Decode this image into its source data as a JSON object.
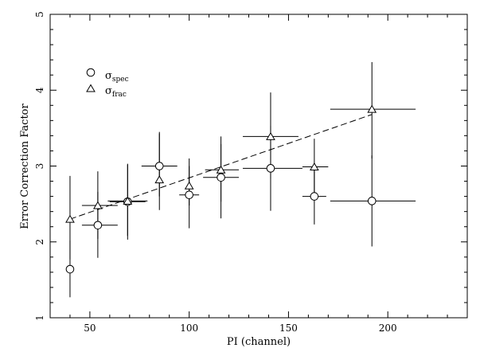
{
  "chart_data": {
    "type": "scatter",
    "xlabel": "PI (channel)",
    "ylabel": "Error Correction Factor",
    "xlim": [
      30,
      240
    ],
    "ylim": [
      1,
      5
    ],
    "x_ticks": [
      50,
      100,
      150,
      200
    ],
    "y_ticks": [
      1,
      2,
      3,
      4,
      5
    ],
    "grid": false,
    "legend_position": "top-left",
    "series": [
      {
        "name": "σspec",
        "marker": "circle",
        "points": [
          {
            "x": 40,
            "y": 1.64,
            "xerr": [
              0,
              0
            ],
            "yerr": [
              1.27,
              2.02
            ]
          },
          {
            "x": 54,
            "y": 2.22,
            "xerr": [
              46,
              64
            ],
            "yerr": [
              1.79,
              2.66
            ]
          },
          {
            "x": 69,
            "y": 2.53,
            "xerr": [
              60,
              78
            ],
            "yerr": [
              2.03,
              3.03
            ]
          },
          {
            "x": 85,
            "y": 3.0,
            "xerr": [
              76,
              94
            ],
            "yerr": [
              2.6,
              3.43
            ]
          },
          {
            "x": 100,
            "y": 2.62,
            "xerr": [
              95,
              105
            ],
            "yerr": [
              2.18,
              3.0
            ]
          },
          {
            "x": 116,
            "y": 2.85,
            "xerr": [
              107,
              125
            ],
            "yerr": [
              2.31,
              3.29
            ]
          },
          {
            "x": 141,
            "y": 2.97,
            "xerr": [
              127,
              157
            ],
            "yerr": [
              2.41,
              3.53
            ]
          },
          {
            "x": 163,
            "y": 2.6,
            "xerr": [
              157,
              169
            ],
            "yerr": [
              2.23,
              2.97
            ]
          },
          {
            "x": 192,
            "y": 2.54,
            "xerr": [
              171,
              214
            ],
            "yerr": [
              1.94,
              3.14
            ]
          }
        ]
      },
      {
        "name": "σfrac",
        "marker": "triangle",
        "points": [
          {
            "x": 40,
            "y": 2.3,
            "xerr": [
              0,
              0
            ],
            "yerr": [
              1.77,
              2.87
            ]
          },
          {
            "x": 54,
            "y": 2.48,
            "xerr": [
              46,
              64
            ],
            "yerr": [
              2.04,
              2.93
            ]
          },
          {
            "x": 69,
            "y": 2.54,
            "xerr": [
              59,
              79
            ],
            "yerr": [
              2.08,
              3.02
            ]
          },
          {
            "x": 85,
            "y": 2.82,
            "xerr": [
              0,
              0
            ],
            "yerr": [
              2.42,
              3.45
            ]
          },
          {
            "x": 100,
            "y": 2.74,
            "xerr": [
              0,
              0
            ],
            "yerr": [
              2.48,
              3.1
            ]
          },
          {
            "x": 116,
            "y": 2.95,
            "xerr": [
              108,
              125
            ],
            "yerr": [
              2.53,
              3.39
            ]
          },
          {
            "x": 141,
            "y": 3.39,
            "xerr": [
              127,
              155
            ],
            "yerr": [
              2.83,
              3.97
            ]
          },
          {
            "x": 163,
            "y": 2.99,
            "xerr": [
              157,
              170
            ],
            "yerr": [
              2.63,
              3.36
            ]
          },
          {
            "x": 192,
            "y": 3.75,
            "xerr": [
              171,
              214
            ],
            "yerr": [
              3.1,
              4.37
            ]
          }
        ]
      }
    ],
    "fit_line": {
      "style": "dashed",
      "x": [
        40,
        192
      ],
      "y": [
        2.3,
        3.68
      ]
    }
  }
}
